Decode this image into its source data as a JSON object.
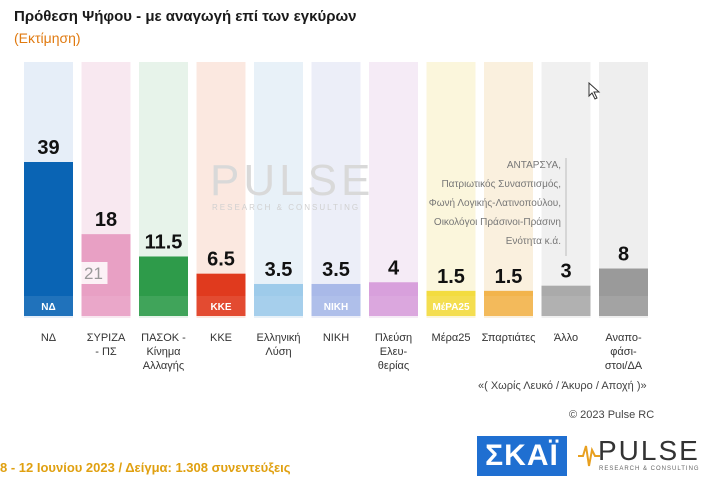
{
  "title": "Πρόθεση Ψήφου - με αναγωγή επί των εγκύρων",
  "subtitle": "(Εκτίμηση)",
  "watermark": "PULSE",
  "watermark_sub": "RESEARCH & CONSULTING",
  "note_lines": [
    "ΑΝΤΑΡΣΥΑ,",
    "Πατριωτικός Συνασπισμός,",
    "Φωνή Λογικής-Λατινοπούλου,",
    "Οικολόγοι Πράσινοι-Πράσινη",
    "Ενότητα κ.ά."
  ],
  "footnote": "«( Χωρίς Λευκό / Άκυρο / Αποχή )»",
  "copyright": "© 2023 Pulse RC",
  "bottom_text": "8 - 12 Ιουνίου 2023 / Δείγμα: 1.308 συνεντεύξεις",
  "brand_skai": "ΣΚΑΪ",
  "brand_pulse": "PULSE",
  "brand_pulse_sub": "RESEARCH & CONSULTING",
  "chart_data": {
    "type": "bar",
    "categories": [
      "ΝΔ",
      "ΣΥΡΙΖΑ - ΠΣ",
      "ΠΑΣΟΚ - Κίνημα Αλλαγής",
      "ΚΚΕ",
      "Ελληνική Λύση",
      "ΝΙΚΗ",
      "Πλεύση Ελευθερίας",
      "Μέρα25",
      "Σπαρτιάτες",
      "Άλλο",
      "Αναποφάσιστοι/ΔΑ"
    ],
    "category_lines": [
      [
        "ΝΔ"
      ],
      [
        "ΣΥΡΙΖΑ",
        "- ΠΣ"
      ],
      [
        "ΠΑΣΟΚ -",
        "Κίνημα",
        "Αλλαγής"
      ],
      [
        "ΚΚΕ"
      ],
      [
        "Ελληνική",
        "Λύση"
      ],
      [
        "ΝΙΚΗ"
      ],
      [
        "Πλεύση",
        "Ελευ-",
        "θερίας"
      ],
      [
        "Μέρα25"
      ],
      [
        "Σπαρτιάτες"
      ],
      [
        "Άλλο"
      ],
      [
        "Αναπο-",
        "φάσι-",
        "στοι/ΔΑ"
      ]
    ],
    "values": [
      39,
      18,
      11.5,
      6.5,
      3.5,
      3.5,
      4,
      1.5,
      1.5,
      3,
      8
    ],
    "value_labels": [
      "39",
      "18",
      "11.5",
      "6.5",
      "3.5",
      "3.5",
      "4",
      "1.5",
      "1.5",
      "3",
      "8"
    ],
    "bar_colors": [
      "#0a64b4",
      "#e8a0c4",
      "#2e9b4a",
      "#e03a1e",
      "#9ecbea",
      "#a9b9e8",
      "#d8a0dc",
      "#f3dc40",
      "#f2b44c",
      "#aaaaaa",
      "#9a9a9a"
    ],
    "column_colors": [
      "#e6eef8",
      "#f8e8f0",
      "#e7f3ea",
      "#fbe8e0",
      "#e8f1f8",
      "#eceef8",
      "#f5ebf6",
      "#fbf6dc",
      "#faf0de",
      "#f0f0f0",
      "#eeeeee"
    ],
    "inner_label": "21",
    "logo_texts": [
      "ΝΔ",
      "",
      "",
      "ΚΚΕ",
      "",
      "ΝΙΚΗ",
      "",
      "ΜέΡΑ25",
      "",
      "",
      ""
    ],
    "ylim": [
      0,
      45
    ]
  }
}
